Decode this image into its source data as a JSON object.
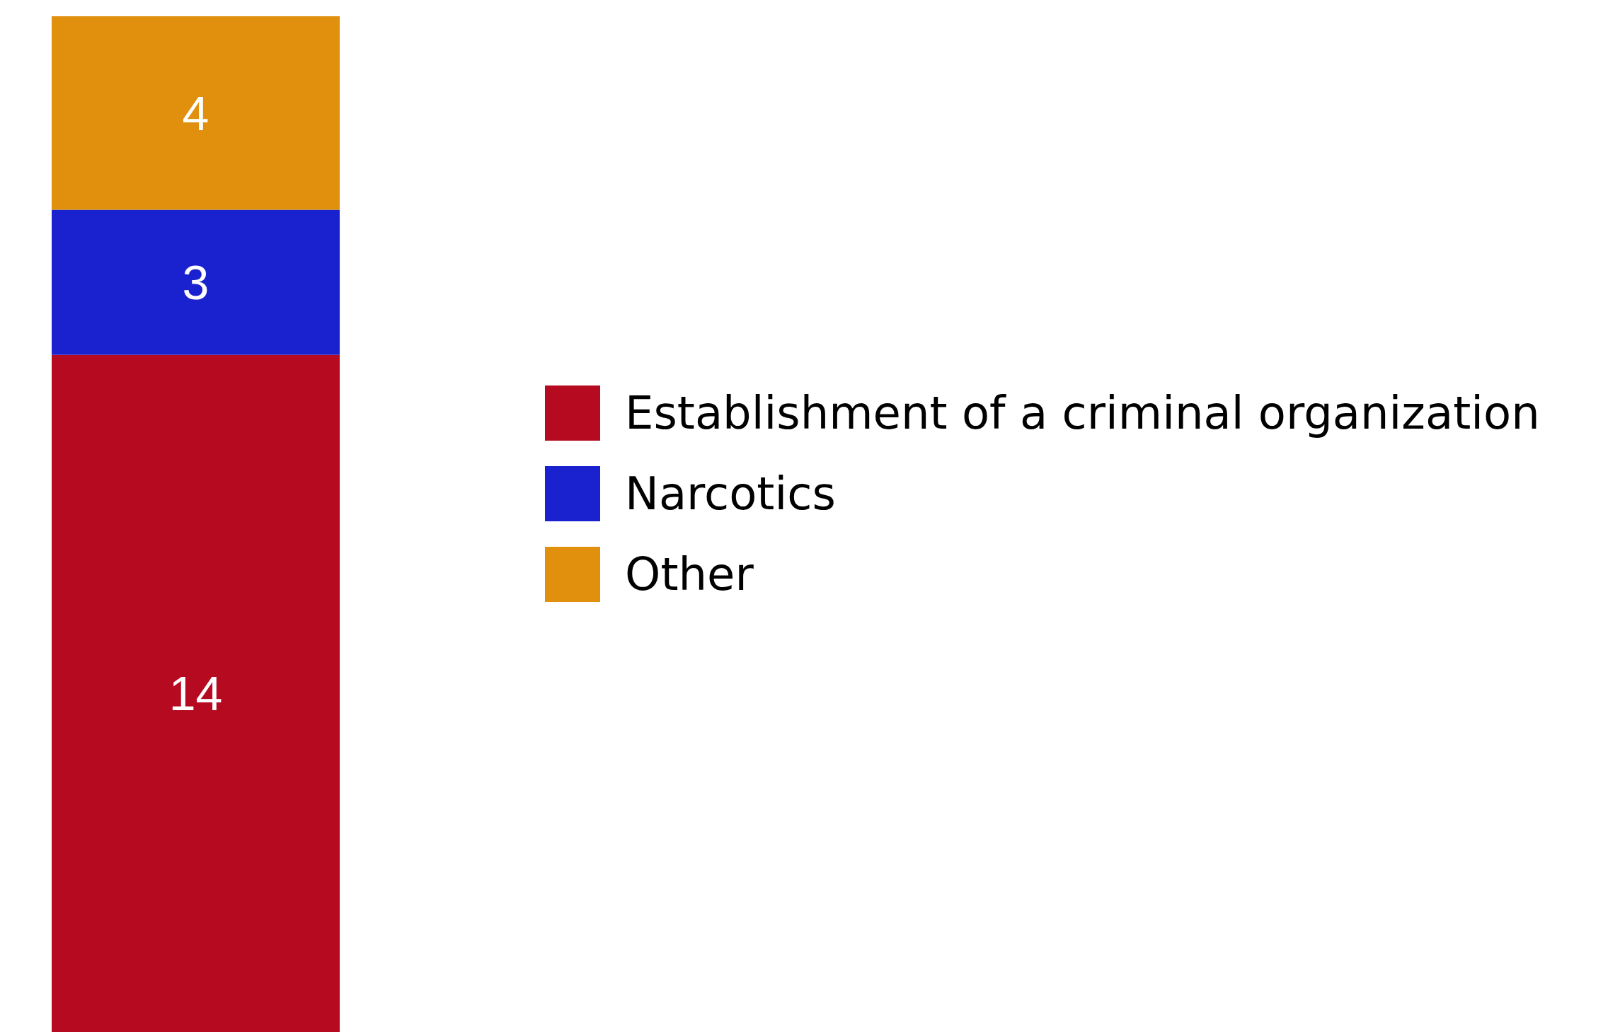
{
  "chart_data": {
    "type": "bar",
    "stacked": true,
    "categories": [
      null
    ],
    "data_labels": true,
    "legend": "right",
    "series": [
      {
        "name": "Establishment of a criminal organization",
        "color": "#b50a1f",
        "values": [
          14
        ]
      },
      {
        "name": "Narcotics",
        "color": "#1a22cf",
        "values": [
          3
        ]
      },
      {
        "name": "Other",
        "color": "#e0900c",
        "values": [
          4
        ]
      }
    ]
  }
}
